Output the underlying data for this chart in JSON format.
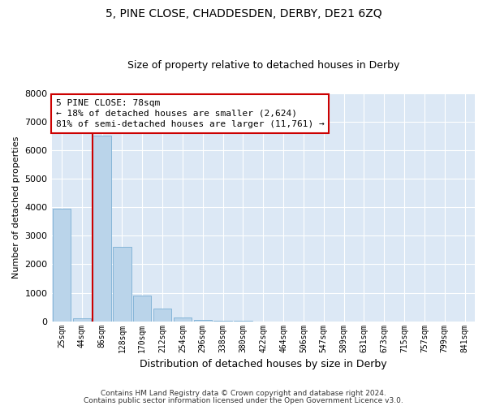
{
  "title1": "5, PINE CLOSE, CHADDESDEN, DERBY, DE21 6ZQ",
  "title2": "Size of property relative to detached houses in Derby",
  "xlabel": "Distribution of detached houses by size in Derby",
  "ylabel": "Number of detached properties",
  "footer1": "Contains HM Land Registry data © Crown copyright and database right 2024.",
  "footer2": "Contains public sector information licensed under the Open Government Licence v3.0.",
  "annotation_line1": "5 PINE CLOSE: 78sqm",
  "annotation_line2": "← 18% of detached houses are smaller (2,624)",
  "annotation_line3": "81% of semi-detached houses are larger (11,761) →",
  "bar_categories": [
    "25sqm",
    "44sqm",
    "86sqm",
    "128sqm",
    "170sqm",
    "212sqm",
    "254sqm",
    "296sqm",
    "338sqm",
    "380sqm",
    "422sqm",
    "464sqm",
    "506sqm",
    "547sqm",
    "589sqm",
    "631sqm",
    "673sqm",
    "715sqm",
    "757sqm",
    "799sqm",
    "841sqm"
  ],
  "bar_values": [
    3950,
    100,
    6500,
    2600,
    900,
    450,
    120,
    50,
    15,
    4,
    1,
    0,
    0,
    0,
    0,
    0,
    0,
    0,
    0,
    0,
    0
  ],
  "bar_color": "#bad4ea",
  "bar_edge_color": "#7bafd4",
  "vline_color": "#cc0000",
  "annotation_box_edgecolor": "#cc0000",
  "background_color": "#dce8f5",
  "grid_color": "#ffffff",
  "ylim": [
    0,
    8000
  ],
  "yticks": [
    0,
    1000,
    2000,
    3000,
    4000,
    5000,
    6000,
    7000,
    8000
  ]
}
